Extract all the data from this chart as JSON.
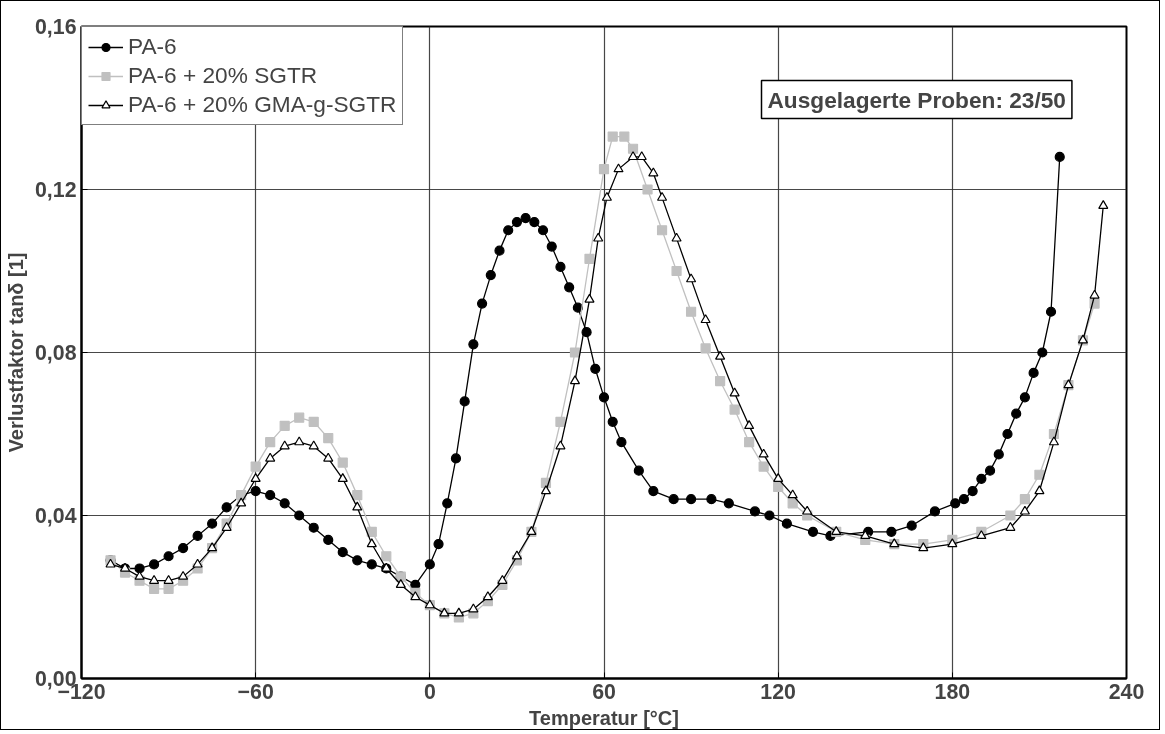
{
  "chart_data": {
    "type": "line",
    "xlabel": "Temperatur [°C]",
    "ylabel": "Verlustfaktor tanδ [1]",
    "annotations": [
      "Ausgelagerte Proben: 23/50"
    ],
    "xlim": [
      -120,
      240
    ],
    "xticks": [
      -120,
      -60,
      0,
      60,
      120,
      180,
      240
    ],
    "ylim": [
      0,
      0.16
    ],
    "yticks": [
      {
        "value": 0,
        "label": "0,00"
      },
      {
        "value": 0.04,
        "label": "0,04"
      },
      {
        "value": 0.08,
        "label": "0,08"
      },
      {
        "value": 0.12,
        "label": "0,12"
      },
      {
        "value": 0.16,
        "label": "0,16"
      }
    ],
    "grid": true,
    "legend": "top left",
    "line_style": "solid",
    "series": [
      {
        "name": "PA-6",
        "color": "#000000",
        "marker": "circle",
        "x": [
          -110,
          -105,
          -100,
          -95,
          -90,
          -85,
          -80,
          -75,
          -70,
          -65,
          -60,
          -55,
          -50,
          -45,
          -40,
          -35,
          -30,
          -25,
          -20,
          -15,
          -10,
          -5,
          0,
          3,
          6,
          9,
          12,
          15,
          18,
          21,
          24,
          27,
          30,
          33,
          36,
          39,
          42,
          45,
          48,
          51,
          54,
          57,
          60,
          63,
          66,
          72,
          77,
          84,
          90,
          97,
          103,
          112,
          117,
          123,
          132,
          138,
          151,
          159,
          166,
          174,
          181,
          184,
          187,
          190,
          193,
          196,
          199,
          202,
          205,
          208,
          211,
          214,
          217
        ],
        "values": [
          0.029,
          0.027,
          0.027,
          0.028,
          0.03,
          0.032,
          0.035,
          0.038,
          0.042,
          0.045,
          0.046,
          0.045,
          0.043,
          0.04,
          0.037,
          0.034,
          0.031,
          0.029,
          0.028,
          0.027,
          0.025,
          0.023,
          0.028,
          0.033,
          0.043,
          0.054,
          0.068,
          0.082,
          0.092,
          0.099,
          0.105,
          0.11,
          0.112,
          0.113,
          0.112,
          0.11,
          0.106,
          0.101,
          0.096,
          0.091,
          0.085,
          0.076,
          0.069,
          0.063,
          0.058,
          0.051,
          0.046,
          0.044,
          0.044,
          0.044,
          0.043,
          0.041,
          0.04,
          0.038,
          0.036,
          0.035,
          0.036,
          0.036,
          0.0375,
          0.041,
          0.043,
          0.044,
          0.046,
          0.049,
          0.051,
          0.055,
          0.06,
          0.065,
          0.069,
          0.075,
          0.08,
          0.09,
          0.128
        ]
      },
      {
        "name": "PA-6 + 20% SGTR",
        "color": "#c0c0c0",
        "marker": "square",
        "x": [
          -110,
          -105,
          -100,
          -95,
          -90,
          -85,
          -80,
          -75,
          -70,
          -65,
          -60,
          -55,
          -50,
          -45,
          -40,
          -35,
          -30,
          -25,
          -20,
          -15,
          -10,
          -5,
          0,
          5,
          10,
          15,
          20,
          25,
          30,
          35,
          40,
          45,
          50,
          55,
          60,
          63,
          67,
          70,
          75,
          80,
          85,
          90,
          95,
          100,
          105,
          110,
          115,
          120,
          125,
          130,
          140,
          150,
          160,
          170,
          180,
          190,
          200,
          205,
          210,
          215,
          220,
          225,
          229
        ],
        "values": [
          0.029,
          0.026,
          0.024,
          0.022,
          0.022,
          0.024,
          0.027,
          0.032,
          0.038,
          0.045,
          0.052,
          0.058,
          0.062,
          0.064,
          0.063,
          0.059,
          0.053,
          0.045,
          0.036,
          0.03,
          0.025,
          0.021,
          0.018,
          0.016,
          0.015,
          0.016,
          0.019,
          0.023,
          0.029,
          0.036,
          0.048,
          0.063,
          0.08,
          0.103,
          0.125,
          0.133,
          0.133,
          0.13,
          0.12,
          0.11,
          0.1,
          0.09,
          0.081,
          0.073,
          0.066,
          0.058,
          0.052,
          0.047,
          0.043,
          0.04,
          0.036,
          0.034,
          0.033,
          0.033,
          0.034,
          0.036,
          0.04,
          0.044,
          0.05,
          0.06,
          0.072,
          0.083,
          0.092
        ]
      },
      {
        "name": "PA-6 + 20% GMA-g-SGTR",
        "color": "#000000",
        "marker": "triangle",
        "x": [
          -110,
          -105,
          -100,
          -95,
          -90,
          -85,
          -80,
          -75,
          -70,
          -65,
          -60,
          -55,
          -50,
          -45,
          -40,
          -35,
          -30,
          -25,
          -20,
          -15,
          -10,
          -5,
          0,
          5,
          10,
          15,
          20,
          25,
          30,
          35,
          40,
          45,
          50,
          55,
          58,
          61,
          65,
          70,
          73,
          77,
          80,
          85,
          90,
          95,
          100,
          105,
          110,
          115,
          120,
          125,
          130,
          140,
          150,
          160,
          170,
          180,
          190,
          200,
          205,
          210,
          215,
          220,
          225,
          229,
          232
        ],
        "values": [
          0.028,
          0.027,
          0.025,
          0.024,
          0.024,
          0.025,
          0.028,
          0.032,
          0.037,
          0.043,
          0.049,
          0.054,
          0.057,
          0.058,
          0.057,
          0.054,
          0.049,
          0.042,
          0.033,
          0.027,
          0.023,
          0.02,
          0.018,
          0.016,
          0.016,
          0.017,
          0.02,
          0.024,
          0.03,
          0.036,
          0.046,
          0.057,
          0.073,
          0.093,
          0.108,
          0.118,
          0.125,
          0.128,
          0.128,
          0.124,
          0.118,
          0.108,
          0.098,
          0.088,
          0.079,
          0.07,
          0.062,
          0.055,
          0.049,
          0.045,
          0.041,
          0.036,
          0.035,
          0.033,
          0.032,
          0.033,
          0.035,
          0.037,
          0.041,
          0.046,
          0.058,
          0.072,
          0.083,
          0.094,
          0.116
        ]
      }
    ]
  }
}
